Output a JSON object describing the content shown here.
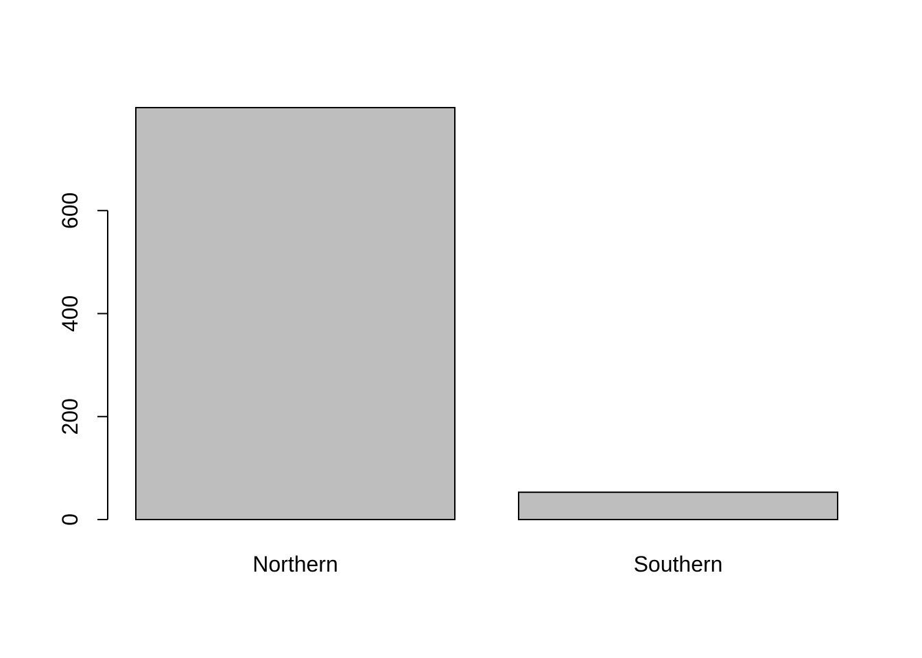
{
  "chart_data": {
    "type": "bar",
    "title": "",
    "xlabel": "",
    "ylabel": "",
    "categories": [
      "Northern",
      "Southern"
    ],
    "values": [
      800,
      53
    ],
    "ylim": [
      0,
      800
    ],
    "yticks": [
      0,
      200,
      400,
      600
    ],
    "ytick_labels": [
      "0",
      "200",
      "400",
      "600"
    ],
    "grid": false,
    "colors": {
      "bar_fill": "#bebebe",
      "bar_stroke": "#000000",
      "background": "#ffffff"
    }
  }
}
